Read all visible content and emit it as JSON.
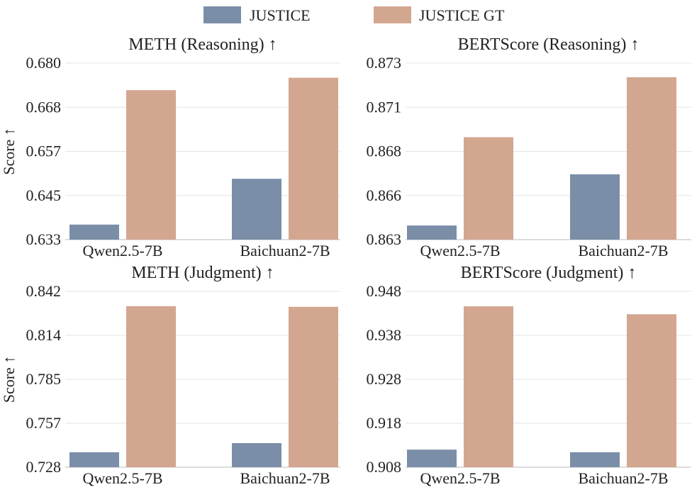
{
  "legend": [
    {
      "label": "JUSTICE",
      "color": "#7a8ea8"
    },
    {
      "label": "JUSTICE GT",
      "color": "#d3a68f"
    }
  ],
  "chart_data": [
    {
      "type": "bar",
      "title": "METH (Reasoning) ↑",
      "ylabel": "Score ↑",
      "categories": [
        "Qwen2.5-7B",
        "Baichuan2-7B"
      ],
      "yticks": [
        "0.633",
        "0.645",
        "0.657",
        "0.668",
        "0.680"
      ],
      "ylim": [
        0.633,
        0.68
      ],
      "series": [
        {
          "name": "JUSTICE",
          "values": [
            0.637,
            0.6492
          ]
        },
        {
          "name": "JUSTICE GT",
          "values": [
            0.6728,
            0.6761
          ]
        }
      ]
    },
    {
      "type": "bar",
      "title": "BERTScore (Reasoning) ↑",
      "ylabel": "",
      "categories": [
        "Qwen2.5-7B",
        "Baichuan2-7B"
      ],
      "yticks": [
        "0.863",
        "0.866",
        "0.868",
        "0.871",
        "0.873"
      ],
      "ylim": [
        0.863,
        0.873
      ],
      "series": [
        {
          "name": "JUSTICE",
          "values": [
            0.8638,
            0.8667
          ]
        },
        {
          "name": "JUSTICE GT",
          "values": [
            0.8688,
            0.8722
          ]
        }
      ]
    },
    {
      "type": "bar",
      "title": "METH (Judgment) ↑",
      "ylabel": "Score ↑",
      "categories": [
        "Qwen2.5-7B",
        "Baichuan2-7B"
      ],
      "yticks": [
        "0.728",
        "0.757",
        "0.785",
        "0.814",
        "0.842"
      ],
      "ylim": [
        0.728,
        0.842
      ],
      "series": [
        {
          "name": "JUSTICE",
          "values": [
            0.7377,
            0.7436
          ]
        },
        {
          "name": "JUSTICE GT",
          "values": [
            0.8324,
            0.832
          ]
        }
      ]
    },
    {
      "type": "bar",
      "title": "BERTScore (Judgment) ↑",
      "ylabel": "",
      "categories": [
        "Qwen2.5-7B",
        "Baichuan2-7B"
      ],
      "yticks": [
        "0.908",
        "0.918",
        "0.928",
        "0.938",
        "0.948"
      ],
      "ylim": [
        0.908,
        0.948
      ],
      "series": [
        {
          "name": "JUSTICE",
          "values": [
            0.912,
            0.9114
          ]
        },
        {
          "name": "JUSTICE GT",
          "values": [
            0.9446,
            0.9428
          ]
        }
      ]
    }
  ]
}
